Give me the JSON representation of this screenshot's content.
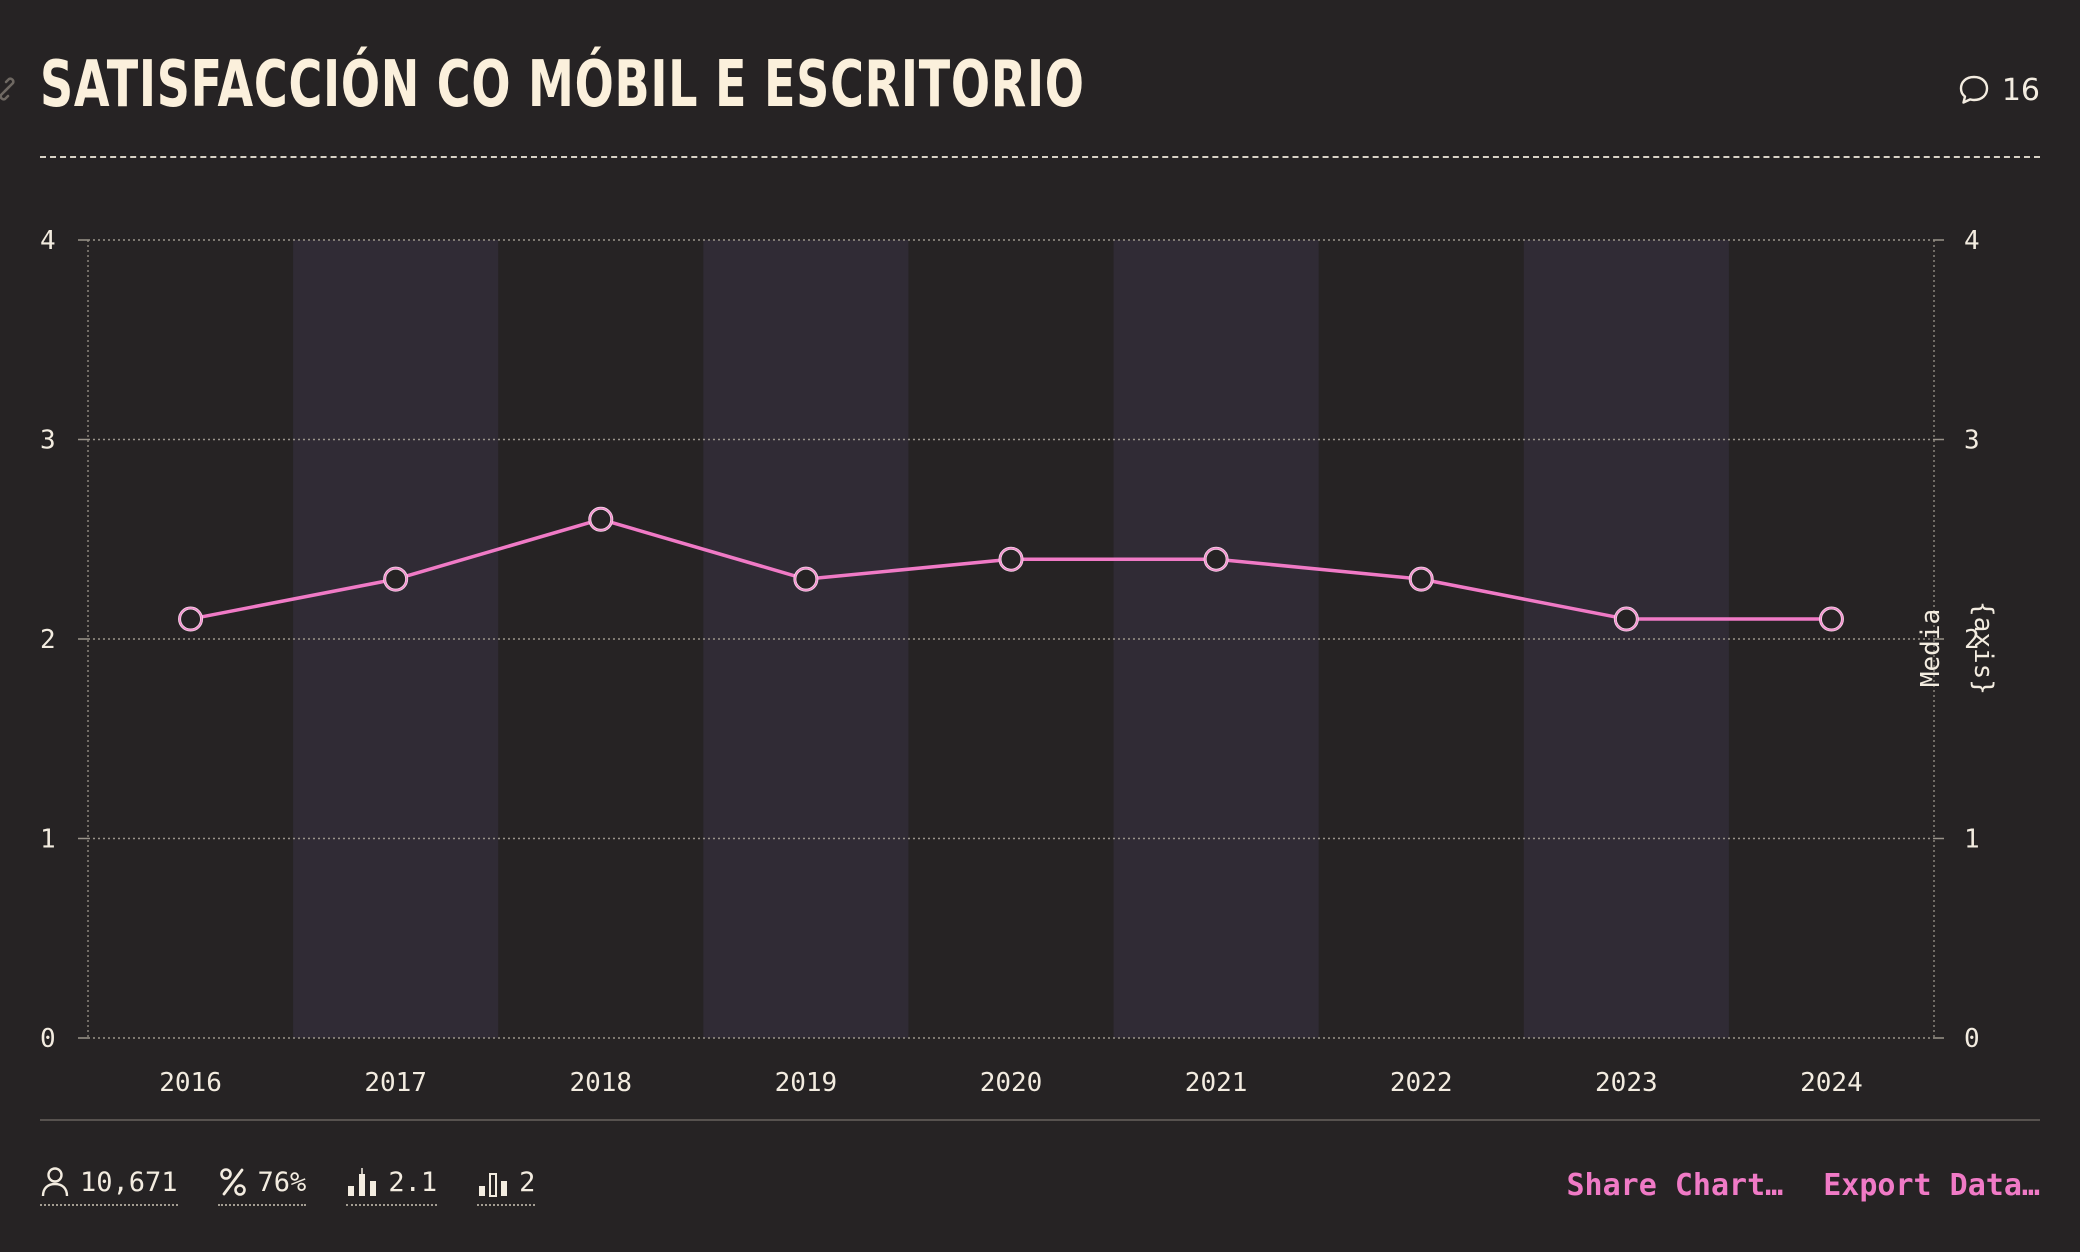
{
  "header": {
    "title": "SATISFACCIÓN CO MÓBIL E ESCRITORIO",
    "comment_count": "16",
    "comment_icon": "speech-bubble-icon",
    "link_icon": "link-icon"
  },
  "chart_data": {
    "type": "line",
    "title": "SATISFACCIÓN CO MÓBIL E ESCRITORIO",
    "categories": [
      "2016",
      "2017",
      "2018",
      "2019",
      "2020",
      "2021",
      "2022",
      "2023",
      "2024"
    ],
    "series": [
      {
        "values": [
          2.1,
          2.3,
          2.6,
          2.3,
          2.4,
          2.4,
          2.3,
          2.1,
          2.1
        ]
      }
    ],
    "ylim": [
      0,
      4
    ],
    "yticks": [
      "0",
      "1",
      "2",
      "3",
      "4"
    ],
    "ylabel": "Media",
    "ylabel_secondary": "{axis}",
    "grid": true,
    "alternating_column_shading": true,
    "colors": {
      "line": "#f07ac6",
      "shade": "#302b35",
      "background": "#262324"
    }
  },
  "stats": [
    {
      "icon": "person-icon",
      "value": "10,671"
    },
    {
      "icon": "percent-icon",
      "value": "76%"
    },
    {
      "icon": "bar-chart-mean-icon",
      "value": "2.1"
    },
    {
      "icon": "bar-chart-median-icon",
      "value": "2"
    }
  ],
  "actions": {
    "share": "Share Chart…",
    "export": "Export Data…"
  }
}
